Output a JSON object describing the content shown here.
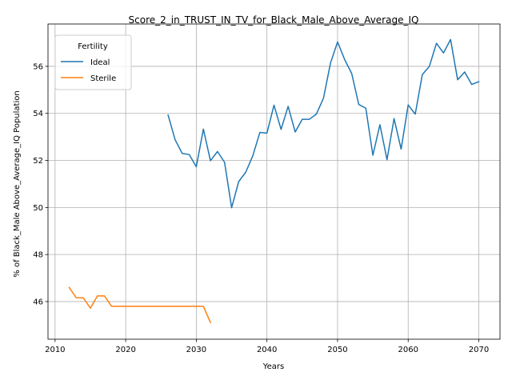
{
  "chart_data": {
    "type": "line",
    "title": "Score_2_in_TRUST_IN_TV_for_Black_Male_Above_Average_IQ",
    "xlabel": "Years",
    "ylabel": "% of Black_Male Above_Average_IQ Population",
    "xlim": [
      2009,
      2073
    ],
    "ylim": [
      44.4,
      57.8
    ],
    "xticks": [
      2010,
      2020,
      2030,
      2040,
      2050,
      2060,
      2070
    ],
    "yticks": [
      46,
      48,
      50,
      52,
      54,
      56
    ],
    "grid": true,
    "legend": {
      "title": "Fertility",
      "placement": "top-left"
    },
    "series": [
      {
        "name": "Ideal",
        "color": "#1f77b4",
        "x": [
          2026,
          2027,
          2028,
          2029,
          2030,
          2031,
          2032,
          2033,
          2034,
          2035,
          2036,
          2037,
          2038,
          2039,
          2040,
          2041,
          2042,
          2043,
          2044,
          2045,
          2046,
          2047,
          2048,
          2049,
          2050,
          2051,
          2052,
          2053,
          2054,
          2055,
          2056,
          2057,
          2058,
          2059,
          2060,
          2061,
          2062,
          2063,
          2064,
          2065,
          2066,
          2067,
          2068,
          2069,
          2070
        ],
        "y": [
          53.93,
          52.88,
          52.3,
          52.25,
          51.73,
          53.33,
          51.99,
          52.38,
          51.92,
          49.99,
          51.1,
          51.5,
          52.2,
          53.19,
          53.16,
          54.35,
          53.32,
          54.3,
          53.21,
          53.75,
          53.75,
          53.97,
          54.64,
          56.14,
          57.04,
          56.29,
          55.7,
          54.38,
          54.22,
          52.22,
          53.52,
          52.03,
          53.78,
          52.48,
          54.36,
          53.97,
          55.65,
          56.0,
          56.98,
          56.57,
          57.14,
          55.43,
          55.76,
          55.23,
          55.35
        ]
      },
      {
        "name": "Sterile",
        "color": "#ff7f0e",
        "x": [
          2012,
          2013,
          2014,
          2015,
          2016,
          2017,
          2018,
          2019,
          2020,
          2021,
          2022,
          2023,
          2024,
          2025,
          2026,
          2027,
          2028,
          2029,
          2030,
          2031,
          2032
        ],
        "y": [
          46.6,
          46.16,
          46.16,
          45.72,
          46.24,
          46.24,
          45.8,
          45.8,
          45.8,
          45.8,
          45.8,
          45.8,
          45.8,
          45.8,
          45.8,
          45.8,
          45.8,
          45.8,
          45.8,
          45.8,
          45.11
        ]
      }
    ]
  }
}
